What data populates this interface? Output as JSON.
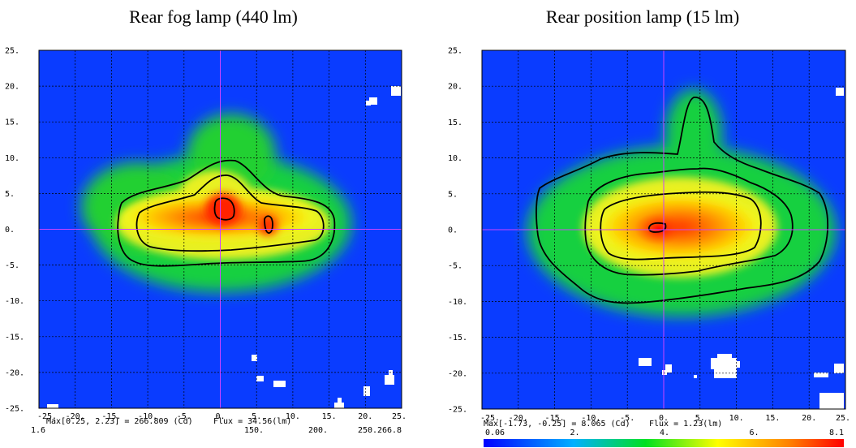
{
  "chart_data": [
    {
      "type": "heatmap",
      "title": "Rear fog lamp (440 lm)",
      "x_ticks": [
        "-25.",
        "-20.",
        "-15.",
        "-10.",
        "-5.",
        "0.",
        "5.",
        "10.",
        "15.",
        "20.",
        "25."
      ],
      "y_ticks": [
        "25.",
        "20.",
        "15.",
        "10.",
        "5.",
        "0.",
        "-5.",
        "-10.",
        "-15.",
        "-20.",
        "-25."
      ],
      "xlim": [
        -25,
        25
      ],
      "ylim": [
        -25,
        25
      ],
      "grid": true,
      "peak": {
        "x": 0.25,
        "y": 2.23,
        "value": 266.809
      },
      "max_text": "Max[0.25, 2.23] = 266.809 (Cd)",
      "flux_text": "Flux = 34.56(lm)",
      "colorbar_labels": [
        "1.6",
        "150.",
        "200.",
        "250.",
        "266.8"
      ],
      "colorbar_visible": false
    },
    {
      "type": "heatmap",
      "title": "Rear position lamp (15 lm)",
      "x_ticks": [
        "-25.",
        "-20.",
        "-15.",
        "-10.",
        "-5.",
        "0.",
        "5.",
        "10.",
        "15.",
        "20.",
        "25."
      ],
      "y_ticks": [
        "25.",
        "20.",
        "15.",
        "10.",
        "5.",
        "0.",
        "-5.",
        "-10.",
        "-15.",
        "-20.",
        "-25."
      ],
      "xlim": [
        -25,
        25
      ],
      "ylim": [
        -25,
        25
      ],
      "grid": true,
      "peak": {
        "x": -1.73,
        "y": -0.25,
        "value": 8.065
      },
      "max_text": "Max[-1.73, -0.25] = 8.065 (Cd)",
      "flux_text": "Flux = 1.23(lm)",
      "colorbar_labels": [
        "0.06",
        "2.",
        "4.",
        "6.",
        "8.1"
      ],
      "colorbar_visible": true
    }
  ],
  "colors": {
    "background": "#0000ff",
    "low": "#1050ff",
    "mid": "#10d020",
    "high_mid": "#ffff00",
    "high": "#ff8000",
    "peak": "#ff0000",
    "contour": "#000000",
    "grid": "#000000",
    "axis_cross": "#cc44ff"
  }
}
